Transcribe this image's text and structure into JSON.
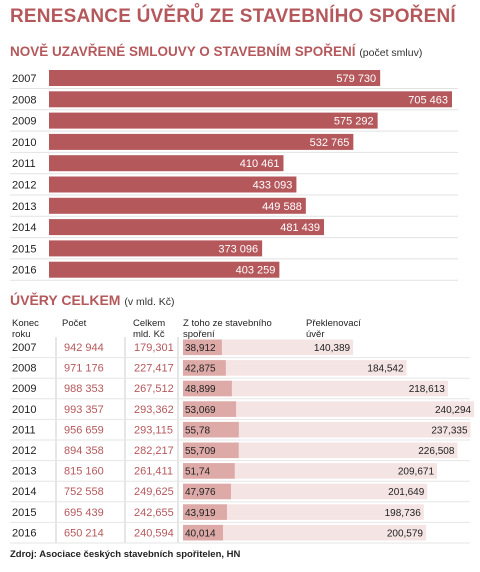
{
  "title": "RENESANCE ÚVĚRŮ ZE STAVEBNÍHO SPOŘENÍ",
  "section1": {
    "title": "NOVĚ UZAVŘENÉ SMLOUVY O STAVEBNÍM SPOŘENÍ",
    "unit": "(počet smluv)"
  },
  "section2": {
    "title": "ÚVĚRY CELKEM",
    "unit": "(v mld. Kč)"
  },
  "source": "Zdroj: Asociace českých stavebních spořitelen, HN",
  "colors": {
    "accent": "#b5585c",
    "light": "#f5e4e4",
    "mid": "#ddaaa8"
  },
  "chart_data": [
    {
      "type": "bar",
      "orientation": "horizontal",
      "categories": [
        "2007",
        "2008",
        "2009",
        "2010",
        "2011",
        "2012",
        "2013",
        "2014",
        "2015",
        "2016"
      ],
      "values": [
        579730,
        705463,
        575292,
        532765,
        410461,
        433093,
        449588,
        481439,
        373096,
        403259
      ],
      "value_labels": [
        "579 730",
        "705 463",
        "575 292",
        "532 765",
        "410 461",
        "433 093",
        "449 588",
        "481 439",
        "373 096",
        "403 259"
      ]
    },
    {
      "type": "table",
      "columns": [
        "Konec roku",
        "Počet",
        "Celkem mld. Kč",
        "Z toho ze stavebního spoření",
        "Překlenovací úvěr"
      ],
      "rows": [
        {
          "year": "2007",
          "count": "942 944",
          "total": "179,301",
          "saving": "38,912",
          "bridge": "140,389",
          "saving_v": 38.912,
          "bridge_v": 140.389
        },
        {
          "year": "2008",
          "count": "971 176",
          "total": "227,417",
          "saving": "42,875",
          "bridge": "184,542",
          "saving_v": 42.875,
          "bridge_v": 184.542
        },
        {
          "year": "2009",
          "count": "988 353",
          "total": "267,512",
          "saving": "48,899",
          "bridge": "218,613",
          "saving_v": 48.899,
          "bridge_v": 218.613
        },
        {
          "year": "2010",
          "count": "993 357",
          "total": "293,362",
          "saving": "53,069",
          "bridge": "240,294",
          "saving_v": 53.069,
          "bridge_v": 240.294
        },
        {
          "year": "2011",
          "count": "956 659",
          "total": "293,115",
          "saving": "55,78",
          "bridge": "237,335",
          "saving_v": 55.78,
          "bridge_v": 237.335
        },
        {
          "year": "2012",
          "count": "894 358",
          "total": "282,217",
          "saving": "55,709",
          "bridge": "226,508",
          "saving_v": 55.709,
          "bridge_v": 226.508
        },
        {
          "year": "2013",
          "count": "815 160",
          "total": "261,411",
          "saving": "51,74",
          "bridge": "209,671",
          "saving_v": 51.74,
          "bridge_v": 209.671
        },
        {
          "year": "2014",
          "count": "752 558",
          "total": "249,625",
          "saving": "47,976",
          "bridge": "201,649",
          "saving_v": 47.976,
          "bridge_v": 201.649
        },
        {
          "year": "2015",
          "count": "695 439",
          "total": "242,655",
          "saving": "43,919",
          "bridge": "198,736",
          "saving_v": 43.919,
          "bridge_v": 198.736
        },
        {
          "year": "2016",
          "count": "650 214",
          "total": "240,594",
          "saving": "40,014",
          "bridge": "200,579",
          "saving_v": 40.014,
          "bridge_v": 200.579
        }
      ]
    }
  ]
}
